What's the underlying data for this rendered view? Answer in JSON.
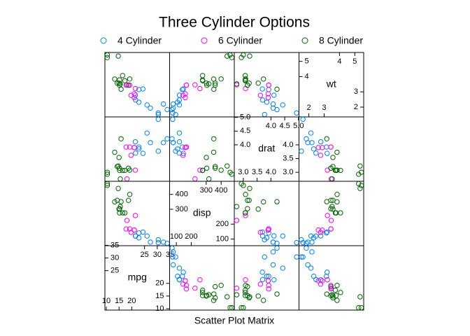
{
  "chart_data": {
    "type": "splom",
    "title": "Three Cylinder Options",
    "xlabel": "Scatter Plot Matrix",
    "legend_position": "top",
    "variables": [
      {
        "name": "mpg",
        "lim": [
          9.46,
          34.84
        ],
        "lower_ticks": [
          10,
          15,
          20
        ],
        "upper_ticks": [
          25,
          30,
          35
        ]
      },
      {
        "name": "disp",
        "lim": [
          55.06,
          488.04
        ],
        "lower_ticks": [
          100,
          200
        ],
        "upper_ticks": [
          300,
          400
        ]
      },
      {
        "name": "drat",
        "lim": [
          2.673,
          5.017
        ],
        "lower_ticks": [
          {
            "value": 3,
            "label": "3.0"
          },
          3.5,
          {
            "value": 4,
            "label": "4.0"
          }
        ],
        "upper_ticks": [
          {
            "value": 4,
            "label": "4.0"
          },
          4.5,
          {
            "value": 5,
            "label": "5.0"
          }
        ]
      },
      {
        "name": "wt",
        "lim": [
          1.357,
          5.58
        ],
        "lower_ticks": [
          2,
          3
        ],
        "upper_ticks": [
          4,
          5
        ]
      }
    ],
    "series": [
      {
        "name": "4 Cylinder",
        "color": "#0080ff",
        "mpg": [
          22.8,
          24.4,
          22.8,
          32.4,
          30.4,
          33.9,
          21.5,
          27.3,
          26.0,
          30.4,
          21.4
        ],
        "disp": [
          108,
          146.7,
          140.8,
          78.7,
          75.7,
          71.1,
          120.1,
          79,
          120.3,
          95.1,
          121
        ],
        "drat": [
          3.85,
          3.69,
          3.92,
          4.08,
          4.93,
          4.22,
          3.7,
          4.08,
          4.43,
          3.77,
          4.11
        ],
        "wt": [
          2.32,
          3.19,
          3.15,
          2.2,
          1.615,
          1.835,
          2.465,
          1.935,
          2.14,
          1.513,
          2.78
        ]
      },
      {
        "name": "6 Cylinder",
        "color": "#ff00ff",
        "mpg": [
          21,
          21,
          21.4,
          18.1,
          19.2,
          17.8,
          19.7
        ],
        "disp": [
          160,
          160,
          258,
          225,
          167.6,
          167.6,
          145
        ],
        "drat": [
          3.9,
          3.9,
          3.08,
          2.76,
          3.92,
          3.92,
          3.62
        ],
        "wt": [
          2.62,
          2.875,
          3.215,
          3.46,
          3.44,
          3.44,
          2.77
        ]
      },
      {
        "name": "8 Cylinder",
        "color": "#006400",
        "mpg": [
          18.7,
          14.3,
          16.4,
          17.3,
          15.2,
          10.4,
          10.4,
          14.7,
          15.5,
          15.2,
          13.3,
          19.2,
          15.8,
          15.0
        ],
        "disp": [
          360,
          360,
          275.8,
          275.8,
          275.8,
          472,
          460,
          440,
          318,
          304,
          350,
          400,
          351,
          301
        ],
        "drat": [
          3.15,
          3.21,
          3.07,
          3.07,
          3.07,
          2.93,
          3.0,
          3.23,
          2.76,
          3.15,
          3.73,
          3.08,
          4.22,
          3.54
        ],
        "wt": [
          3.44,
          3.57,
          4.07,
          3.73,
          3.78,
          5.25,
          5.424,
          5.345,
          3.52,
          3.435,
          3.84,
          3.845,
          3.17,
          3.57
        ]
      }
    ]
  }
}
